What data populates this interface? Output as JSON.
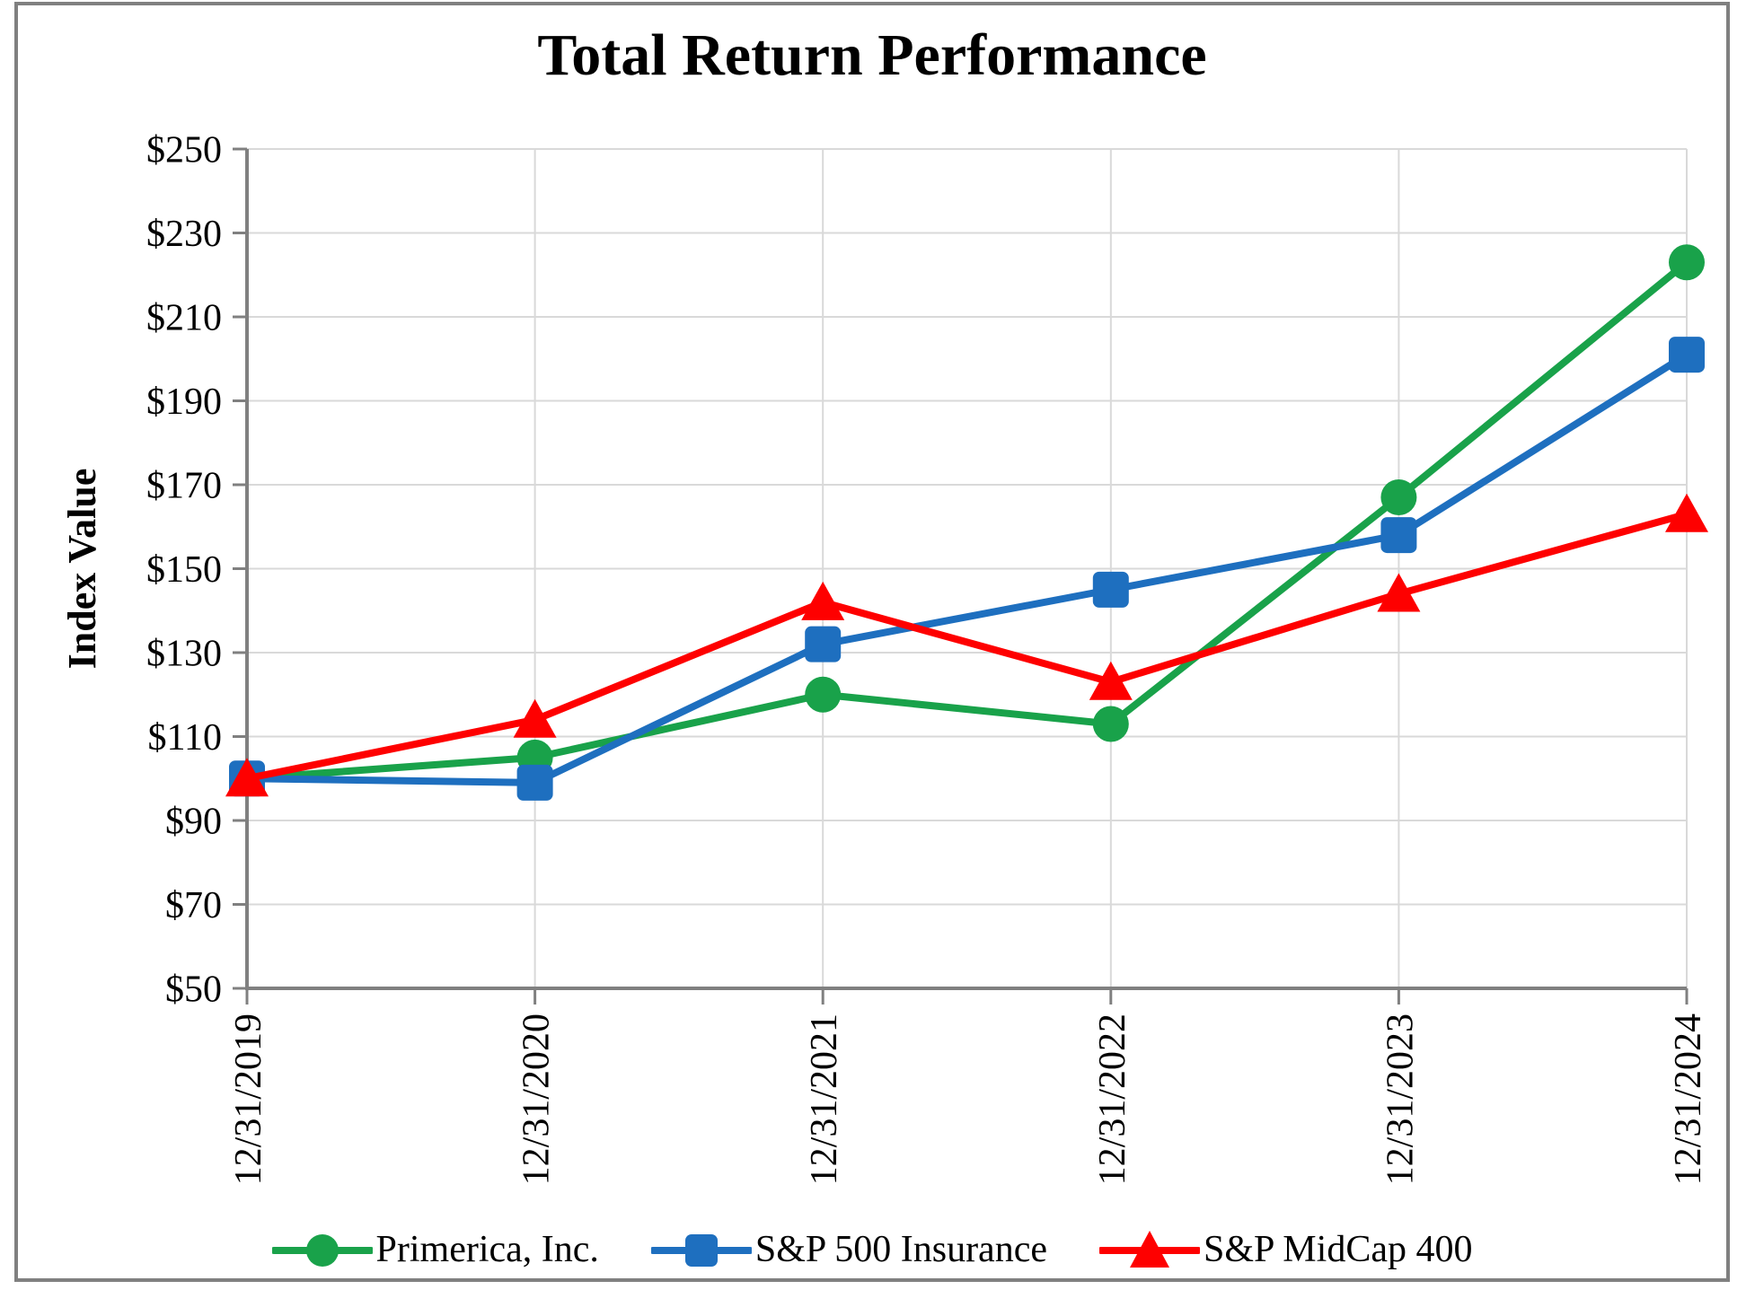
{
  "chart": {
    "title": "Total Return Performance"
  },
  "chart_data": {
    "type": "line",
    "title": "Total Return Performance",
    "xlabel": "",
    "ylabel": "Index Value",
    "x": [
      "12/31/2019",
      "12/31/2020",
      "12/31/2021",
      "12/31/2022",
      "12/31/2023",
      "12/31/2024"
    ],
    "series": [
      {
        "name": "Primerica, Inc.",
        "marker": "circle",
        "color": "#19A24A",
        "values": [
          100,
          105,
          120,
          113,
          167,
          223
        ]
      },
      {
        "name": "S&P 500 Insurance",
        "marker": "square",
        "color": "#1E6FBF",
        "values": [
          100,
          99,
          132,
          145,
          158,
          201
        ]
      },
      {
        "name": "S&P MidCap 400",
        "marker": "triangle",
        "color": "#FE0000",
        "values": [
          100,
          114,
          142,
          123,
          144,
          163
        ]
      }
    ],
    "ylim": [
      50,
      250
    ],
    "y_tick_step": 20,
    "y_tick_labels": [
      "$50",
      "$70",
      "$90",
      "$110",
      "$130",
      "$150",
      "$170",
      "$190",
      "$210",
      "$230",
      "$250"
    ],
    "grid": true,
    "legend_position": "bottom"
  },
  "theme": {
    "axis_color": "#808080",
    "gridline_color": "#D9D9D9",
    "frame_border_color": "#808080",
    "background_color": "#FFFFFF",
    "text_color": "#000000"
  }
}
